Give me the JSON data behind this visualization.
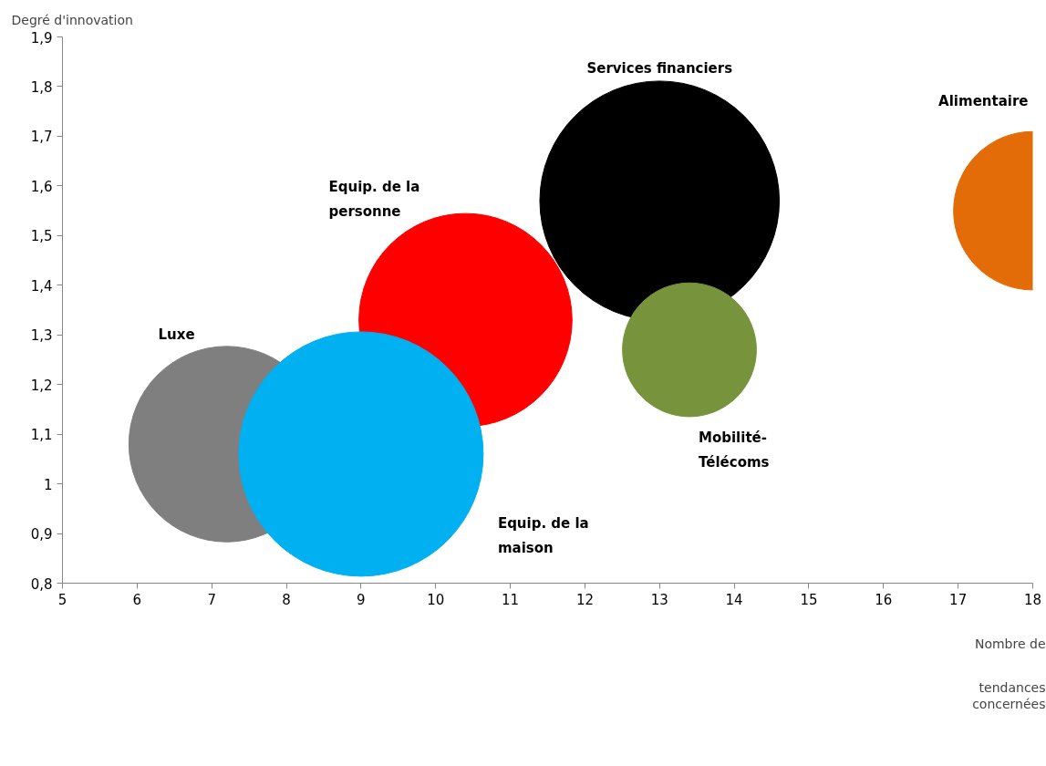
{
  "chart_data": {
    "type": "bubble",
    "xlabel": "Nombre de tendances concernées",
    "ylabel": "Degré d'innovation",
    "xlim": [
      5,
      18
    ],
    "xticks": [
      5,
      6,
      7,
      8,
      9,
      10,
      11,
      12,
      13,
      14,
      15,
      16,
      17,
      18
    ],
    "ylim": [
      0.8,
      1.9
    ],
    "yticks": [
      {
        "value": 0.8,
        "label": "0,8"
      },
      {
        "value": 0.9,
        "label": "0,9"
      },
      {
        "value": 1,
        "label": "1"
      },
      {
        "value": 1.1,
        "label": "1,1"
      },
      {
        "value": 1.2,
        "label": "1,2"
      },
      {
        "value": 1.3,
        "label": "1,3"
      },
      {
        "value": 1.4,
        "label": "1,4"
      },
      {
        "value": 1.5,
        "label": "1,5"
      },
      {
        "value": 1.6,
        "label": "1,6"
      },
      {
        "value": 1.7,
        "label": "1,7"
      },
      {
        "value": 1.8,
        "label": "1,8"
      },
      {
        "value": 1.9,
        "label": "1,9"
      }
    ],
    "grid": false,
    "series": [
      {
        "name": "Alimentaire",
        "color": "#e36c09",
        "x": [
          18
        ],
        "values": [
          1.55
        ],
        "sizes": [
          0.42
        ]
      },
      {
        "name": "Services financiers",
        "color": "#000000",
        "x": [
          13
        ],
        "values": [
          1.57
        ],
        "sizes": [
          0.96
        ]
      },
      {
        "name": "Mobilité-Télécoms",
        "color": "#77933c",
        "x": [
          13.4
        ],
        "values": [
          1.27
        ],
        "sizes": [
          0.3
        ]
      },
      {
        "name": "Equip. de la personne",
        "color": "#ff0000",
        "x": [
          10.4
        ],
        "values": [
          1.33
        ],
        "sizes": [
          0.76
        ]
      },
      {
        "name": "Luxe",
        "color": "#7f7f7f",
        "x": [
          7.2
        ],
        "values": [
          1.08
        ],
        "sizes": [
          0.64
        ]
      },
      {
        "name": "Equip. de la maison",
        "color": "#00b0f0",
        "x": [
          9
        ],
        "values": [
          1.06
        ],
        "sizes": [
          1
        ]
      }
    ]
  }
}
